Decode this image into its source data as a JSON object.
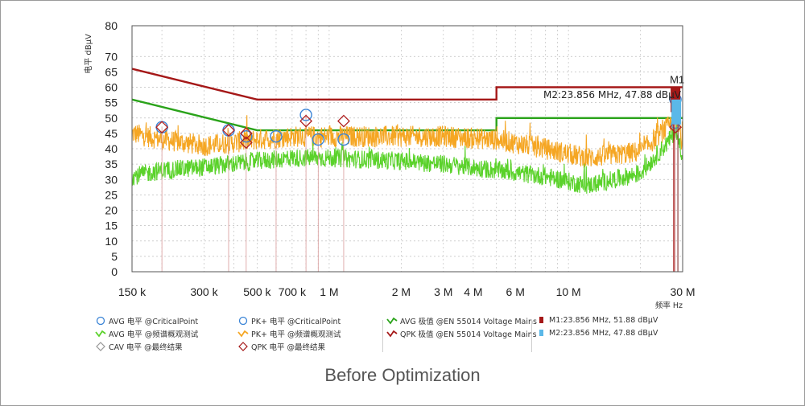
{
  "chart_data": {
    "type": "line",
    "ylabel": "电平 dBµV",
    "xlabel": "频率 Hz",
    "x_scale": "log",
    "xlim_hz": [
      150000,
      30000000
    ],
    "ylim": [
      0,
      80
    ],
    "yticks": [
      0,
      5,
      10,
      15,
      20,
      25,
      30,
      35,
      40,
      45,
      50,
      55,
      60,
      65,
      70,
      80
    ],
    "xticks": [
      {
        "hz": 150000,
        "label": "150 k"
      },
      {
        "hz": 300000,
        "label": "300 k"
      },
      {
        "hz": 500000,
        "label": "500 k"
      },
      {
        "hz": 700000,
        "label": "700 k"
      },
      {
        "hz": 1000000,
        "label": "1 M"
      },
      {
        "hz": 2000000,
        "label": "2 M"
      },
      {
        "hz": 3000000,
        "label": "3 M"
      },
      {
        "hz": 4000000,
        "label": "4 M"
      },
      {
        "hz": 6000000,
        "label": "6 M"
      },
      {
        "hz": 10000000,
        "label": "10 M"
      },
      {
        "hz": 30000000,
        "label": "30 M"
      }
    ],
    "grid": true,
    "series": [
      {
        "name": "QPK 极值 @EN 55014 Voltage Mains",
        "color": "#a51818",
        "x_hz": [
          150000,
          500000,
          500000,
          5000000,
          5000000,
          30000000
        ],
        "y": [
          66,
          56,
          56,
          56,
          60,
          60
        ]
      },
      {
        "name": "AVG 极值 @EN 55014 Voltage Mains",
        "color": "#2aa31a",
        "x_hz": [
          150000,
          500000,
          500000,
          5000000,
          5000000,
          30000000
        ],
        "y": [
          56,
          46,
          46,
          46,
          50,
          50
        ]
      },
      {
        "name": "PK+ 电平 @频谱概观测试",
        "color": "#f5a623",
        "x_hz": [
          150000,
          200000,
          300000,
          400000,
          500000,
          700000,
          1000000,
          2000000,
          3000000,
          5000000,
          8000000,
          12000000,
          20000000,
          26000000,
          28000000,
          30000000
        ],
        "y": [
          45,
          43,
          41,
          42,
          43,
          44,
          44,
          44,
          44,
          43,
          40,
          37,
          39,
          47,
          49,
          42
        ],
        "noise": 3.5
      },
      {
        "name": "AVG 电平 @频谱概观测试",
        "color": "#5ad22a",
        "x_hz": [
          150000,
          200000,
          300000,
          500000,
          700000,
          1000000,
          2000000,
          3000000,
          5000000,
          8000000,
          12000000,
          20000000,
          26000000,
          28000000,
          30000000
        ],
        "y": [
          31,
          33,
          34,
          36,
          37,
          37,
          36,
          35,
          33,
          31,
          28,
          32,
          42,
          46,
          38
        ],
        "noise": 3.0
      }
    ],
    "peaks": [
      {
        "name": "PK+ 电平 @CriticalPoint",
        "x_hz": [
          200000,
          380000,
          450000,
          600000,
          800000,
          900000,
          1150000,
          28000000
        ],
        "y": [
          47,
          46,
          44,
          44,
          51,
          43,
          43,
          56
        ]
      },
      {
        "name": "QPK 电平 @最终结果",
        "x_hz": [
          200000,
          380000,
          450000,
          450000,
          800000,
          1150000,
          28000000
        ],
        "y": [
          47,
          46,
          45,
          42,
          49,
          49,
          47
        ]
      },
      {
        "name": "AVG 电平 @CriticalPoint",
        "x_hz": [
          28000000
        ],
        "y": [
          48
        ]
      },
      {
        "name": "CAV 电平 @最终结果",
        "x_hz": [
          28000000
        ],
        "y": [
          47
        ]
      }
    ],
    "markers": [
      {
        "id": "M1",
        "freq": "23.856 MHz",
        "value": "51.88 dBµV"
      },
      {
        "id": "M2",
        "freq": "23.856 MHz",
        "value": "47.88 dBµV"
      }
    ],
    "marker_label": "M1",
    "marker_annotation": "M2:23.856 MHz, 47.88 dBµV"
  },
  "legend": [
    {
      "id": "avg-critical",
      "label": "AVG 电平 @CriticalPoint",
      "symbol": "circle",
      "color": "#3a84d6"
    },
    {
      "id": "avg-spectrum",
      "label": "AVG 电平 @频谱概观测试",
      "symbol": "wave",
      "color": "#5ad22a"
    },
    {
      "id": "cav-final",
      "label": "CAV 电平 @最终结果",
      "symbol": "diamond",
      "color": "#999999"
    },
    {
      "id": "pk-critical",
      "label": "PK+ 电平 @CriticalPoint",
      "symbol": "circle",
      "color": "#3a84d6"
    },
    {
      "id": "pk-spectrum",
      "label": "PK+ 电平 @频谱概观测试",
      "symbol": "wave",
      "color": "#f5a623"
    },
    {
      "id": "qpk-final",
      "label": "QPK 电平 @最终结果",
      "symbol": "diamond",
      "color": "#a51818"
    },
    {
      "id": "avg-limit",
      "label": "AVG 极值 @EN 55014 Voltage Mains",
      "symbol": "wave",
      "color": "#2aa31a"
    },
    {
      "id": "qpk-limit",
      "label": "QPK 极值 @EN 55014 Voltage Mains",
      "symbol": "wave",
      "color": "#a51818"
    },
    {
      "id": "m1",
      "label": "M1:23.856 MHz, 51.88 dBµV",
      "symbol": "square",
      "color": "#a51818"
    },
    {
      "id": "m2",
      "label": "M2:23.856 MHz, 47.88 dBµV",
      "symbol": "square",
      "color": "#5bb8e8"
    }
  ],
  "caption": "Before Optimization"
}
